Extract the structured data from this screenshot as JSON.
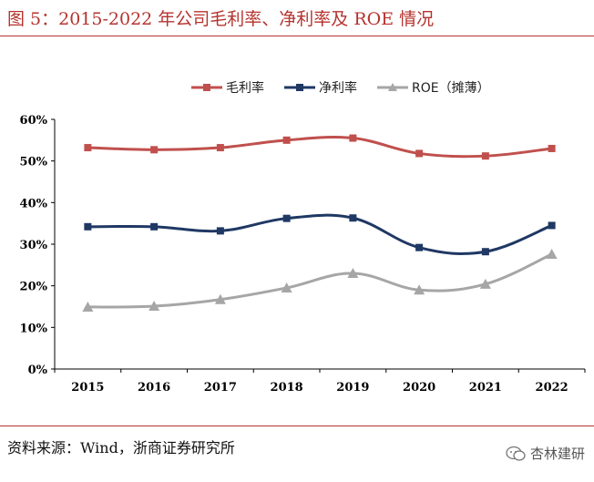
{
  "figure": {
    "title": "图 5：2015-2022 年公司毛利率、净利率及 ROE 情况",
    "source": "资料来源：Wind，浙商证券研究所",
    "watermark": "杏林建研"
  },
  "colors": {
    "accent": "#b5332e",
    "gross_margin": "#c0504d",
    "net_margin": "#1f3864",
    "roe": "#a6a6a6",
    "axis": "#000000"
  },
  "chart_data": {
    "type": "line",
    "title": "",
    "xlabel": "",
    "ylabel": "",
    "categories": [
      "2015",
      "2016",
      "2017",
      "2018",
      "2019",
      "2020",
      "2021",
      "2022"
    ],
    "ylim": [
      0,
      60
    ],
    "yticks": [
      "0%",
      "10%",
      "20%",
      "30%",
      "40%",
      "50%",
      "60%"
    ],
    "grid": false,
    "legend": "top",
    "smooth": true,
    "series": [
      {
        "name": "毛利率",
        "marker": "square",
        "color": "#c0504d",
        "values": [
          53.2,
          52.7,
          53.2,
          55.0,
          55.5,
          51.8,
          51.2,
          53.0
        ]
      },
      {
        "name": "净利率",
        "marker": "square",
        "color": "#1f3864",
        "values": [
          34.2,
          34.2,
          33.2,
          36.2,
          36.3,
          29.2,
          28.2,
          34.5
        ]
      },
      {
        "name": "ROE（摊薄）",
        "marker": "triangle",
        "color": "#a6a6a6",
        "values": [
          14.9,
          15.1,
          16.7,
          19.5,
          23.0,
          19.0,
          20.4,
          27.6
        ]
      }
    ]
  }
}
